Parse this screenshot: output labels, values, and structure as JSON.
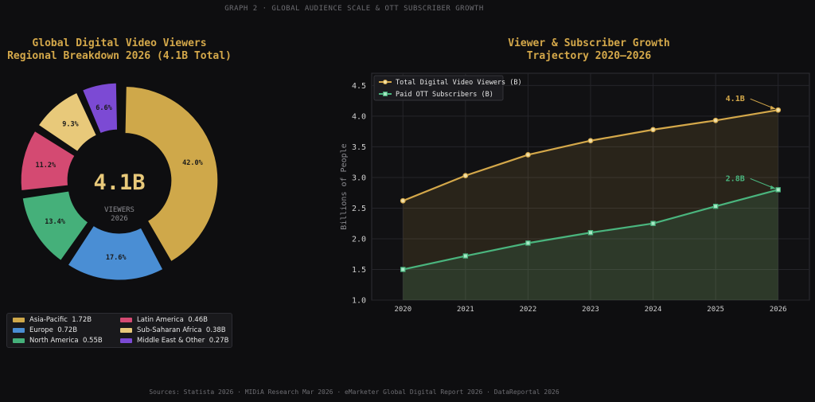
{
  "header": "GRAPH 2  ·  GLOBAL AUDIENCE SCALE & OTT SUBSCRIBER GROWTH",
  "footer": "Sources: Statista 2026 · MIDiA Research Mar 2026 · eMarketer Global Digital Report 2026 · DataReportal 2026",
  "chart_data": [
    {
      "type": "pie",
      "title": [
        "Global Digital Video Viewers",
        "Regional Breakdown 2026 (4.1B Total)"
      ],
      "center_value": "4.1B",
      "center_label": [
        "VIEWERS",
        "2026"
      ],
      "slices": [
        {
          "label": "Asia-Pacific",
          "value": 1.72,
          "value_label": "1.72B",
          "pct": "42.0%",
          "color": "#cfa84a"
        },
        {
          "label": "Europe",
          "value": 0.72,
          "value_label": "0.72B",
          "pct": "17.6%",
          "color": "#4a8ed4"
        },
        {
          "label": "North America",
          "value": 0.55,
          "value_label": "0.55B",
          "pct": "13.4%",
          "color": "#45b07a"
        },
        {
          "label": "Latin America",
          "value": 0.46,
          "value_label": "0.46B",
          "pct": "11.2%",
          "color": "#d44a72"
        },
        {
          "label": "Sub-Saharan Africa",
          "value": 0.38,
          "value_label": "0.38B",
          "pct": "9.3%",
          "color": "#e8c97a"
        },
        {
          "label": "Middle East & Other",
          "value": 0.27,
          "value_label": "0.27B",
          "pct": "6.6%",
          "color": "#7c4ad4"
        }
      ],
      "legend_order": [
        0,
        3,
        1,
        4,
        2,
        5
      ],
      "legend_placement": "bottom"
    },
    {
      "type": "line",
      "title": [
        "Viewer & Subscriber Growth",
        "Trajectory 2020–2026"
      ],
      "ylabel": "Billions of People",
      "xlabel": "",
      "x": [
        "2020",
        "2021",
        "2022",
        "2023",
        "2024",
        "2025",
        "2026"
      ],
      "ylim": [
        1.0,
        4.7
      ],
      "yticks": [
        "1.0",
        "1.5",
        "2.0",
        "2.5",
        "3.0",
        "3.5",
        "4.0",
        "4.5"
      ],
      "grid": true,
      "legend_placement": "top-left",
      "series": [
        {
          "name": "Total Digital Video Viewers (B)",
          "values": [
            2.62,
            3.03,
            3.37,
            3.6,
            3.78,
            3.93,
            4.1
          ],
          "color": "#d4a84a",
          "marker": "circle",
          "annotation": "4.1B"
        },
        {
          "name": "Paid OTT Subscribers (B)",
          "values": [
            1.5,
            1.72,
            1.93,
            2.1,
            2.25,
            2.53,
            2.8
          ],
          "color": "#4ab57e",
          "marker": "square",
          "annotation": "2.8B"
        }
      ]
    }
  ]
}
